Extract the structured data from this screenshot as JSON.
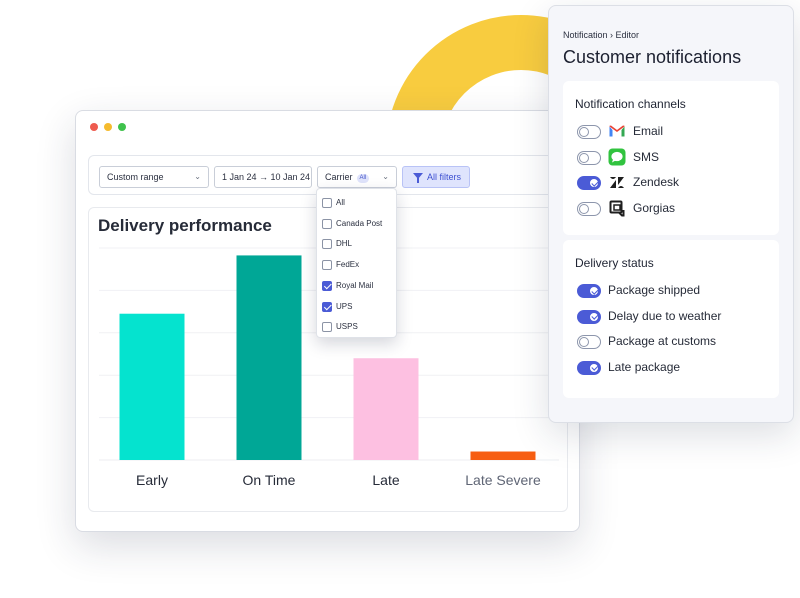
{
  "window": {
    "dots": {
      "close_color": "#ee5b4f",
      "minimize_color": "#f5bb2e",
      "maximize_color": "#3fc24c"
    }
  },
  "filters": {
    "date_range_select": "Custom range",
    "date_input": "1 Jan 24 → 10 Jan 24",
    "carrier_label": "Carrier",
    "carrier_badge": "All",
    "all_filters_label": "All filters"
  },
  "carrier_dropdown": {
    "options": [
      {
        "label": "All",
        "checked": false
      },
      {
        "label": "Canada Post",
        "checked": false
      },
      {
        "label": "DHL",
        "checked": false
      },
      {
        "label": "FedEx",
        "checked": false
      },
      {
        "label": "Royal Mail",
        "checked": true
      },
      {
        "label": "UPS",
        "checked": true
      },
      {
        "label": "USPS",
        "checked": false
      }
    ]
  },
  "chart_data": {
    "type": "bar",
    "title": "Delivery performance",
    "categories": [
      "Early",
      "On Time",
      "Late",
      "Late Severe"
    ],
    "values": [
      138,
      193,
      96,
      8
    ],
    "colors": [
      "#05e3cf",
      "#00a796",
      "#fdc0e1",
      "#f75e12"
    ],
    "ylim": [
      0,
      200
    ],
    "grid": true,
    "xlabel": "",
    "ylabel": ""
  },
  "panel": {
    "breadcrumb": "Notification › Editor",
    "title": "Customer notifications",
    "channels": {
      "title": "Notification channels",
      "items": [
        {
          "label": "Email",
          "enabled": false,
          "icon": "gmail-icon"
        },
        {
          "label": "SMS",
          "enabled": false,
          "icon": "sms-icon"
        },
        {
          "label": "Zendesk",
          "enabled": true,
          "icon": "zendesk-icon"
        },
        {
          "label": "Gorgias",
          "enabled": false,
          "icon": "gorgias-icon"
        }
      ]
    },
    "status": {
      "title": "Delivery status",
      "items": [
        {
          "label": "Package shipped",
          "enabled": true
        },
        {
          "label": "Delay due to weather",
          "enabled": true
        },
        {
          "label": "Package at customs",
          "enabled": false
        },
        {
          "label": "Late package",
          "enabled": true
        }
      ]
    }
  },
  "colors": {
    "accent": "#4b5bd6",
    "deco_ring": "#f8cc3f"
  }
}
